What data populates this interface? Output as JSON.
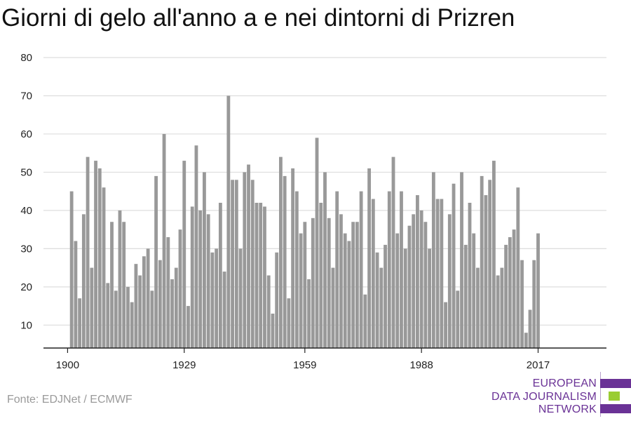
{
  "title": "Giorni di gelo all'anno a e nei dintorni di Prizren",
  "source": "Fonte: EDJNet / ECMWF",
  "logo": {
    "lines": [
      "EUROPEAN",
      "DATA JOURNALISM",
      "NETWORK"
    ],
    "colors": {
      "text": "#6a3296",
      "purple": "#6a3296",
      "green": "#9acd32"
    }
  },
  "chart_data": {
    "type": "bar",
    "x_start": 1901,
    "values": [
      45,
      32,
      17,
      39,
      54,
      25,
      53,
      51,
      46,
      21,
      37,
      19,
      40,
      37,
      20,
      16,
      26,
      23,
      28,
      30,
      19,
      49,
      27,
      60,
      33,
      22,
      25,
      35,
      53,
      15,
      41,
      57,
      40,
      50,
      39,
      29,
      30,
      42,
      24,
      70,
      48,
      48,
      30,
      50,
      52,
      48,
      42,
      42,
      41,
      23,
      13,
      29,
      54,
      49,
      17,
      51,
      45,
      34,
      37,
      22,
      38,
      59,
      42,
      50,
      38,
      25,
      45,
      39,
      34,
      32,
      37,
      37,
      45,
      18,
      51,
      43,
      29,
      25,
      31,
      45,
      54,
      34,
      45,
      30,
      36,
      39,
      44,
      40,
      37,
      30,
      50,
      43,
      43,
      16,
      39,
      47,
      19,
      50,
      31,
      42,
      34,
      25,
      49,
      44,
      48,
      53,
      23,
      25,
      31,
      33,
      35,
      46,
      27,
      8,
      14,
      27,
      34
    ],
    "x_tick_labels": [
      "1900",
      "1929",
      "1959",
      "1988",
      "2017"
    ],
    "x_tick_years": [
      1900,
      1929,
      1959,
      1988,
      2017
    ],
    "y_ticks": [
      10,
      20,
      30,
      40,
      50,
      60,
      70,
      80
    ],
    "ylim": [
      4,
      80
    ],
    "xlim": [
      1894,
      2034
    ],
    "grid": true,
    "colors": {
      "bar": "#999999",
      "grid": "#dddddd",
      "axis": "#222222"
    }
  }
}
